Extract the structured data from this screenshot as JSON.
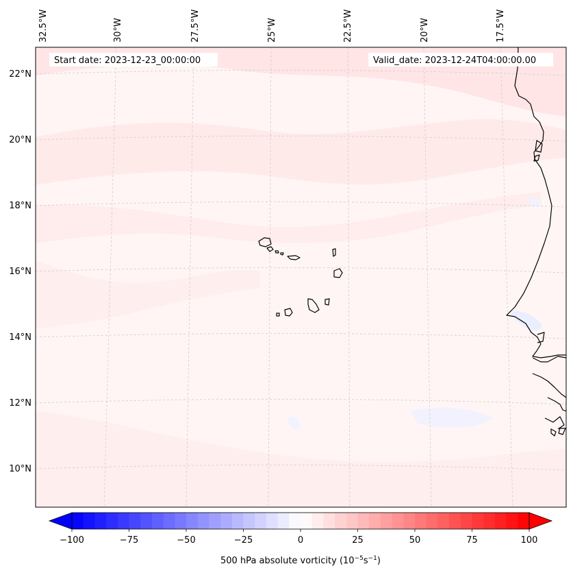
{
  "map": {
    "start_date": "Start date: 2023-12-23_00:00:00",
    "valid_date": "Valid_date: 2023-12-24T04:00:00.00",
    "lon_labels": [
      "32.5°W",
      "30°W",
      "27.5°W",
      "25°W",
      "22.5°W",
      "20°W",
      "17.5°W"
    ],
    "lat_labels": [
      "22°N",
      "20°N",
      "18°N",
      "16°N",
      "14°N",
      "12°N",
      "10°N"
    ],
    "gridlines": true
  },
  "colorbar": {
    "tick_labels": [
      "−100",
      "−75",
      "−50",
      "−25",
      "0",
      "25",
      "50",
      "75",
      "100"
    ],
    "label_prefix": "500 hPa absolute vorticity (10",
    "label_exp1": "−5",
    "label_mid": "s",
    "label_exp2": "−1",
    "label_suffix": ")",
    "cmap": "bwr",
    "vmin": -100,
    "vmax": 100,
    "min_color": "#0000ff",
    "mid_color": "#ffffff",
    "max_color": "#ff0000"
  },
  "colors": {
    "field_background": "#fff5f5",
    "coastline": "#000000",
    "gridline": "#cccccc"
  }
}
